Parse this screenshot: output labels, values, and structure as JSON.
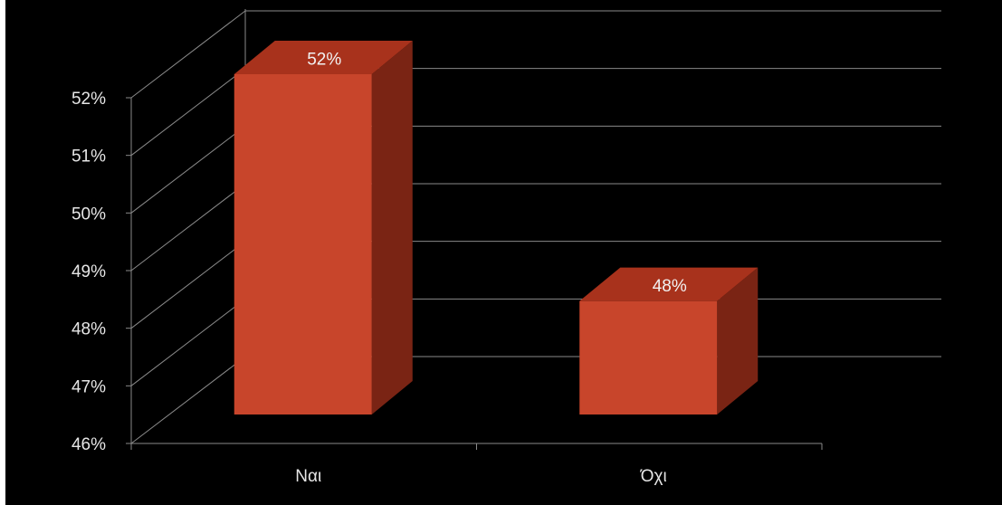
{
  "chart_data": {
    "type": "bar",
    "style": "3d-column",
    "categories": [
      "Ναι",
      "Όχι"
    ],
    "values": [
      52,
      48
    ],
    "data_labels": [
      "52%",
      "48%"
    ],
    "ylim": [
      46,
      52
    ],
    "yticks": [
      46,
      47,
      48,
      49,
      50,
      51,
      52
    ],
    "ytick_labels": [
      "46%",
      "47%",
      "48%",
      "49%",
      "50%",
      "51%",
      "52%"
    ],
    "grid": true,
    "legend": "none",
    "colors": {
      "background": "#000000",
      "bar_front": "#c8452b",
      "bar_top": "#a8321c",
      "bar_side": "#7a2414",
      "gridline": "#8a8a8a",
      "text": "#e6e6e6"
    }
  }
}
